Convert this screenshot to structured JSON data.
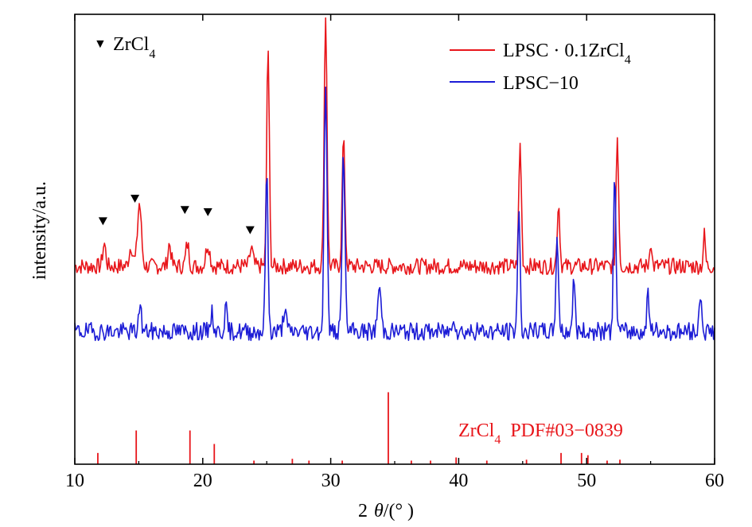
{
  "chart_data": {
    "type": "line",
    "xlabel_prefix": "2",
    "xlabel_theta": "θ",
    "xlabel_unit": "/(°  )",
    "ylabel": "intensity/a.u.",
    "xlim": [
      10,
      60
    ],
    "x_ticks": [
      10,
      20,
      30,
      40,
      50,
      60
    ],
    "y_ticks_shown": false,
    "legend_position": "top-right",
    "marker_legend": {
      "symbol": "▼",
      "text": "ZrCl",
      "sub": "4"
    },
    "series": [
      {
        "name": "LPSC · 0.1ZrCl4",
        "legend_main": "LPSC · 0.1ZrCl",
        "legend_sub": "4",
        "color": "#e8161b",
        "baseline": 0.44,
        "noise_seed": 7,
        "noise_amp": 0.018,
        "peaks": [
          {
            "x": 12.3,
            "h": 0.05,
            "w": 0.12
          },
          {
            "x": 14.4,
            "h": 0.045,
            "w": 0.15
          },
          {
            "x": 15.05,
            "h": 0.14,
            "w": 0.15
          },
          {
            "x": 17.4,
            "h": 0.05,
            "w": 0.12
          },
          {
            "x": 18.8,
            "h": 0.05,
            "w": 0.12
          },
          {
            "x": 20.4,
            "h": 0.05,
            "w": 0.15
          },
          {
            "x": 23.8,
            "h": 0.04,
            "w": 0.12
          },
          {
            "x": 25.1,
            "h": 0.49,
            "w": 0.1
          },
          {
            "x": 29.6,
            "h": 0.56,
            "w": 0.11
          },
          {
            "x": 31.0,
            "h": 0.28,
            "w": 0.11
          },
          {
            "x": 44.8,
            "h": 0.27,
            "w": 0.1
          },
          {
            "x": 47.8,
            "h": 0.14,
            "w": 0.1
          },
          {
            "x": 52.4,
            "h": 0.29,
            "w": 0.1
          },
          {
            "x": 55.0,
            "h": 0.06,
            "w": 0.08
          },
          {
            "x": 59.2,
            "h": 0.07,
            "w": 0.08
          }
        ]
      },
      {
        "name": "LPSC-10",
        "legend_main": "LPSC−10",
        "legend_sub": "",
        "color": "#1c1cd6",
        "baseline": 0.295,
        "noise_seed": 19,
        "noise_amp": 0.02,
        "peaks": [
          {
            "x": 15.1,
            "h": 0.07,
            "w": 0.09
          },
          {
            "x": 20.7,
            "h": 0.04,
            "w": 0.12
          },
          {
            "x": 21.8,
            "h": 0.05,
            "w": 0.1
          },
          {
            "x": 25.0,
            "h": 0.35,
            "w": 0.1
          },
          {
            "x": 26.4,
            "h": 0.05,
            "w": 0.12
          },
          {
            "x": 29.6,
            "h": 0.56,
            "w": 0.11
          },
          {
            "x": 31.0,
            "h": 0.4,
            "w": 0.11
          },
          {
            "x": 33.8,
            "h": 0.1,
            "w": 0.13
          },
          {
            "x": 39.6,
            "h": 0.04,
            "w": 0.1
          },
          {
            "x": 44.7,
            "h": 0.26,
            "w": 0.1
          },
          {
            "x": 47.7,
            "h": 0.21,
            "w": 0.1
          },
          {
            "x": 49.0,
            "h": 0.11,
            "w": 0.1
          },
          {
            "x": 52.2,
            "h": 0.34,
            "w": 0.1
          },
          {
            "x": 54.8,
            "h": 0.1,
            "w": 0.08
          },
          {
            "x": 58.9,
            "h": 0.09,
            "w": 0.09
          }
        ]
      }
    ],
    "marker_positions": [
      {
        "x": 12.2,
        "y": 0.54
      },
      {
        "x": 14.7,
        "y": 0.59
      },
      {
        "x": 18.6,
        "y": 0.565
      },
      {
        "x": 20.4,
        "y": 0.56
      },
      {
        "x": 23.7,
        "y": 0.52
      }
    ],
    "reference": {
      "label_main": "ZrCl",
      "label_sub": "4",
      "label_rest": "PDF#03−0839",
      "color": "#e8161b",
      "lines": [
        {
          "x": 11.8,
          "h": 0.025
        },
        {
          "x": 14.8,
          "h": 0.075
        },
        {
          "x": 19.0,
          "h": 0.075
        },
        {
          "x": 20.9,
          "h": 0.045
        },
        {
          "x": 24.0,
          "h": 0.008
        },
        {
          "x": 27.0,
          "h": 0.012
        },
        {
          "x": 28.3,
          "h": 0.008
        },
        {
          "x": 30.9,
          "h": 0.008
        },
        {
          "x": 34.5,
          "h": 0.16
        },
        {
          "x": 36.3,
          "h": 0.008
        },
        {
          "x": 37.8,
          "h": 0.008
        },
        {
          "x": 39.8,
          "h": 0.015
        },
        {
          "x": 42.2,
          "h": 0.008
        },
        {
          "x": 45.3,
          "h": 0.01
        },
        {
          "x": 48.0,
          "h": 0.025
        },
        {
          "x": 49.6,
          "h": 0.025
        },
        {
          "x": 50.1,
          "h": 0.02
        },
        {
          "x": 51.6,
          "h": 0.008
        },
        {
          "x": 52.6,
          "h": 0.01
        }
      ]
    }
  }
}
